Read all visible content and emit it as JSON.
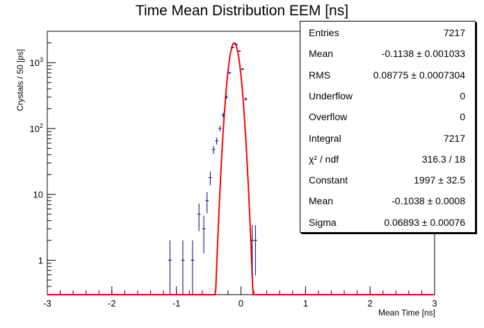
{
  "chart_data": {
    "type": "histogram",
    "title": "Time Mean Distribution EEM [ns]",
    "xlabel": "Mean Time [ns]",
    "ylabel": "Crystals / 50 [ps]",
    "xlim": [
      -3,
      3
    ],
    "ylim": [
      0.3,
      3000
    ],
    "log_y": true,
    "grid": false,
    "x_ticks": [
      "-3",
      "-2",
      "-1",
      "0",
      "1",
      "2",
      "3"
    ],
    "y_ticks": [
      "1",
      "10",
      "10^2",
      "10^3"
    ],
    "bin_width": 0.05,
    "points": [
      {
        "x": -1.1,
        "y": 1
      },
      {
        "x": -0.9,
        "y": 1
      },
      {
        "x": -0.75,
        "y": 1
      },
      {
        "x": -0.65,
        "y": 5
      },
      {
        "x": -0.575,
        "y": 3
      },
      {
        "x": -0.525,
        "y": 8
      },
      {
        "x": -0.475,
        "y": 18
      },
      {
        "x": -0.425,
        "y": 48
      },
      {
        "x": -0.375,
        "y": 65
      },
      {
        "x": -0.325,
        "y": 100
      },
      {
        "x": -0.275,
        "y": 160
      },
      {
        "x": -0.225,
        "y": 300
      },
      {
        "x": -0.175,
        "y": 700
      },
      {
        "x": -0.125,
        "y": 1700
      },
      {
        "x": -0.075,
        "y": 1900
      },
      {
        "x": -0.025,
        "y": 1500
      },
      {
        "x": 0.025,
        "y": 800
      },
      {
        "x": 0.075,
        "y": 280
      },
      {
        "x": 0.175,
        "y": 2
      },
      {
        "x": 0.225,
        "y": 2
      }
    ],
    "fit": {
      "function": "gaus",
      "constant": 1997,
      "mean": -0.1038,
      "sigma": 0.06893,
      "color": "#ff0000"
    },
    "marker_color": "#000080"
  },
  "stats": {
    "rows": [
      {
        "label": "Entries",
        "value": "7217"
      },
      {
        "label": "Mean",
        "value": "-0.1138 ± 0.001033"
      },
      {
        "label": "RMS",
        "value": "0.08775 ± 0.0007304"
      },
      {
        "label": "Underflow",
        "value": "0"
      },
      {
        "label": "Overflow",
        "value": "0"
      },
      {
        "label": "Integral",
        "value": "7217"
      },
      {
        "label": "χ² / ndf",
        "value": "316.3 / 18"
      },
      {
        "label": "Constant",
        "value": "1997 ± 32.5"
      },
      {
        "label": "Mean",
        "value": "-0.1038 ± 0.0008"
      },
      {
        "label": "Sigma",
        "value": "0.06893 ± 0.00076"
      }
    ]
  }
}
